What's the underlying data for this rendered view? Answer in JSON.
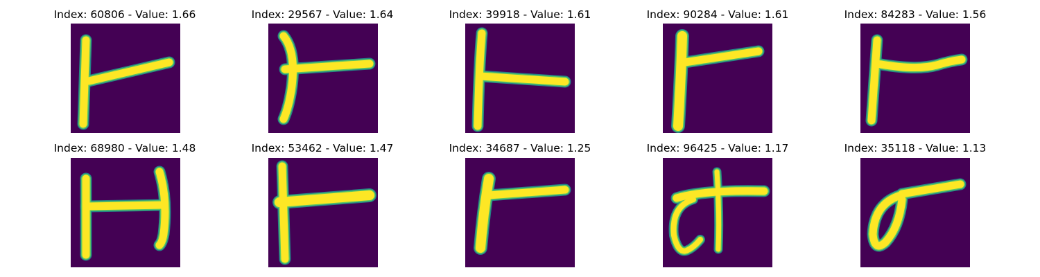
{
  "colors": {
    "background": "#440154",
    "stroke": "#fde725",
    "edge": "#21918c",
    "edge_mid": "#5ec962"
  },
  "panels": [
    {
      "title": "Index: 60806 - Value: 1.66",
      "glyph": "t-tilted"
    },
    {
      "title": "Index: 29567 - Value: 1.64",
      "glyph": "t-curved"
    },
    {
      "title": "Index: 39918 - Value: 1.61",
      "glyph": "t-flat"
    },
    {
      "title": "Index: 90284 - Value: 1.61",
      "glyph": "t-thick"
    },
    {
      "title": "Index: 84283 - Value: 1.56",
      "glyph": "t-wave"
    },
    {
      "title": "Index: 68980 - Value: 1.48",
      "glyph": "h-shape"
    },
    {
      "title": "Index: 53462 - Value: 1.47",
      "glyph": "t-cross"
    },
    {
      "title": "Index: 34687 - Value: 1.25",
      "glyph": "t-short"
    },
    {
      "title": "Index: 96425 - Value: 1.17",
      "glyph": "t-loop"
    },
    {
      "title": "Index: 35118 - Value: 1.13",
      "glyph": "sigma"
    }
  ]
}
